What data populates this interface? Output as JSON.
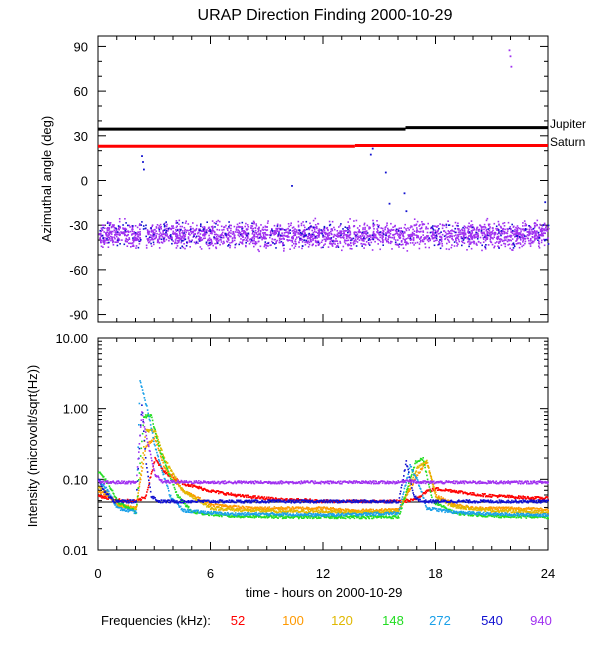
{
  "chart_data": {
    "title": "URAP Direction Finding  2000-10-29",
    "xlabel": "time - hours on 2000-10-29",
    "x_ticks": [
      "0",
      "6",
      "12",
      "18",
      "24"
    ],
    "x_tick_values": [
      0,
      6,
      12,
      18,
      24
    ],
    "xlim": [
      0,
      24
    ],
    "panels": [
      {
        "id": "azimuth",
        "type": "scatter",
        "ylabel": "Azimuthal angle (deg)",
        "ylim": [
          -95,
          97
        ],
        "y_ticks": [
          "90",
          "60",
          "30",
          "0",
          "-30",
          "-60",
          "-90"
        ],
        "y_tick_values": [
          90,
          60,
          30,
          0,
          -30,
          -60,
          -90
        ],
        "reference_lines": [
          {
            "name": "Jupiter",
            "color": "#000000",
            "segments": [
              [
                0,
                16.4,
                34.5
              ],
              [
                16.4,
                24,
                35.5
              ]
            ]
          },
          {
            "name": "Saturn",
            "color": "#ff0000",
            "segments": [
              [
                0,
                13.7,
                23.0
              ],
              [
                13.7,
                24,
                23.5
              ]
            ]
          }
        ],
        "series": [
          {
            "name": "940 kHz band",
            "color": "#a030f0",
            "center": -36,
            "spread": 5
          },
          {
            "name": "540 kHz band",
            "color": "#1010d0",
            "center": -36,
            "spread": 6
          }
        ],
        "outliers": [
          {
            "x": 2.3,
            "y": 17
          },
          {
            "x": 2.35,
            "y": 13
          },
          {
            "x": 2.4,
            "y": 8
          },
          {
            "x": 10.3,
            "y": -3
          },
          {
            "x": 14.5,
            "y": 18
          },
          {
            "x": 14.6,
            "y": 22
          },
          {
            "x": 15.3,
            "y": 6
          },
          {
            "x": 15.5,
            "y": -15
          },
          {
            "x": 16.3,
            "y": -8
          },
          {
            "x": 16.4,
            "y": -20
          },
          {
            "x": 21.9,
            "y": 88
          },
          {
            "x": 21.95,
            "y": 84
          },
          {
            "x": 22.0,
            "y": 77
          },
          {
            "x": 23.8,
            "y": -14
          }
        ]
      },
      {
        "id": "intensity",
        "type": "line",
        "ylabel": "Intensity (microvolt/sqrt(Hz))",
        "yscale": "log",
        "ylim": [
          0.01,
          10
        ],
        "y_ticks": [
          "10.00",
          "1.00",
          "0.10",
          "0.01"
        ],
        "y_tick_values": [
          10,
          1,
          0.1,
          0.01
        ],
        "series": [
          {
            "name": "52",
            "color": "#ff0000",
            "points": [
              [
                0,
                0.06
              ],
              [
                1,
                0.052
              ],
              [
                2.0,
                0.05
              ],
              [
                2.5,
                0.058
              ],
              [
                3.0,
                0.2
              ],
              [
                3.5,
                0.13
              ],
              [
                4.5,
                0.09
              ],
              [
                6,
                0.07
              ],
              [
                7.5,
                0.06
              ],
              [
                9,
                0.055
              ],
              [
                10,
                0.052
              ],
              [
                11,
                0.052
              ],
              [
                12,
                0.05
              ],
              [
                14,
                0.05
              ],
              [
                16,
                0.05
              ],
              [
                16.8,
                0.052
              ],
              [
                17.5,
                0.07
              ],
              [
                18,
                0.075
              ],
              [
                19,
                0.07
              ],
              [
                20,
                0.063
              ],
              [
                21,
                0.06
              ],
              [
                22,
                0.058
              ],
              [
                23,
                0.056
              ],
              [
                24,
                0.055
              ]
            ]
          },
          {
            "name": "100",
            "color": "#ff9900",
            "points": [
              [
                0,
                0.07
              ],
              [
                0.5,
                0.06
              ],
              [
                1.0,
                0.045
              ],
              [
                2.0,
                0.04
              ],
              [
                2.5,
                0.3
              ],
              [
                3.0,
                0.4
              ],
              [
                3.5,
                0.15
              ],
              [
                4.5,
                0.07
              ],
              [
                6,
                0.045
              ],
              [
                8,
                0.04
              ],
              [
                10,
                0.04
              ],
              [
                12,
                0.04
              ],
              [
                13,
                0.038
              ],
              [
                14,
                0.037
              ],
              [
                16,
                0.038
              ],
              [
                17,
                0.12
              ],
              [
                17.5,
                0.18
              ],
              [
                18,
                0.06
              ],
              [
                19,
                0.045
              ],
              [
                20,
                0.04
              ],
              [
                22,
                0.04
              ],
              [
                24,
                0.038
              ]
            ]
          },
          {
            "name": "120",
            "color": "#e0b800",
            "points": [
              [
                0,
                0.08
              ],
              [
                0.5,
                0.065
              ],
              [
                1.0,
                0.045
              ],
              [
                2.0,
                0.038
              ],
              [
                2.5,
                0.5
              ],
              [
                3.0,
                0.5
              ],
              [
                3.5,
                0.2
              ],
              [
                4.5,
                0.07
              ],
              [
                6,
                0.04
              ],
              [
                8,
                0.037
              ],
              [
                10,
                0.036
              ],
              [
                12,
                0.036
              ],
              [
                14,
                0.035
              ],
              [
                16,
                0.036
              ],
              [
                17,
                0.15
              ],
              [
                17.5,
                0.19
              ],
              [
                18,
                0.055
              ],
              [
                19,
                0.042
              ],
              [
                21,
                0.037
              ],
              [
                24,
                0.035
              ]
            ]
          },
          {
            "name": "148",
            "color": "#22dd22",
            "points": [
              [
                0,
                0.13
              ],
              [
                0.5,
                0.09
              ],
              [
                1.0,
                0.05
              ],
              [
                2.0,
                0.035
              ],
              [
                2.4,
                0.8
              ],
              [
                2.8,
                0.8
              ],
              [
                3.3,
                0.25
              ],
              [
                4.2,
                0.06
              ],
              [
                5,
                0.035
              ],
              [
                7,
                0.031
              ],
              [
                10,
                0.03
              ],
              [
                12,
                0.03
              ],
              [
                14,
                0.03
              ],
              [
                16,
                0.03
              ],
              [
                16.9,
                0.18
              ],
              [
                17.3,
                0.2
              ],
              [
                17.8,
                0.05
              ],
              [
                19,
                0.034
              ],
              [
                21,
                0.031
              ],
              [
                24,
                0.03
              ]
            ]
          },
          {
            "name": "272",
            "color": "#1aa0e8",
            "points": [
              [
                0,
                0.1
              ],
              [
                0.5,
                0.07
              ],
              [
                1.0,
                0.04
              ],
              [
                2.0,
                0.035
              ],
              [
                2.2,
                2.5
              ],
              [
                2.6,
                1.0
              ],
              [
                3.0,
                0.3
              ],
              [
                3.8,
                0.06
              ],
              [
                4.5,
                0.037
              ],
              [
                7,
                0.033
              ],
              [
                10,
                0.033
              ],
              [
                12,
                0.032
              ],
              [
                14,
                0.033
              ],
              [
                16,
                0.034
              ],
              [
                16.6,
                0.16
              ],
              [
                17.0,
                0.1
              ],
              [
                17.5,
                0.04
              ],
              [
                19,
                0.035
              ],
              [
                21,
                0.033
              ],
              [
                24,
                0.032
              ]
            ]
          },
          {
            "name": "540",
            "color": "#1010d0",
            "points": [
              [
                0,
                0.1
              ],
              [
                0.3,
                0.07
              ],
              [
                0.8,
                0.05
              ],
              [
                2.0,
                0.05
              ],
              [
                2.3,
                1.2
              ],
              [
                2.5,
                0.2
              ],
              [
                2.8,
                0.06
              ],
              [
                3.2,
                0.05
              ],
              [
                6,
                0.05
              ],
              [
                10,
                0.05
              ],
              [
                12,
                0.05
              ],
              [
                14,
                0.05
              ],
              [
                16,
                0.05
              ],
              [
                16.4,
                0.18
              ],
              [
                16.8,
                0.06
              ],
              [
                17.2,
                0.05
              ],
              [
                20,
                0.05
              ],
              [
                24,
                0.05
              ]
            ]
          },
          {
            "name": "940",
            "color": "#a030f0",
            "points": [
              [
                0,
                0.093
              ],
              [
                1,
                0.093
              ],
              [
                2,
                0.093
              ],
              [
                2.3,
                0.9
              ],
              [
                2.6,
                0.35
              ],
              [
                3.0,
                0.12
              ],
              [
                3.4,
                0.095
              ],
              [
                6,
                0.093
              ],
              [
                10,
                0.093
              ],
              [
                14,
                0.093
              ],
              [
                16,
                0.093
              ],
              [
                16.5,
                0.1
              ],
              [
                17,
                0.093
              ],
              [
                20,
                0.093
              ],
              [
                24,
                0.093
              ]
            ]
          }
        ]
      }
    ]
  },
  "labels": {
    "jupiter": "Jupiter",
    "saturn": "Saturn",
    "legend_prefix": "Frequencies (kHz):"
  },
  "legend": [
    {
      "label": "52",
      "color": "#ff0000"
    },
    {
      "label": "100",
      "color": "#ff9900"
    },
    {
      "label": "120",
      "color": "#e0b800"
    },
    {
      "label": "148",
      "color": "#22dd22"
    },
    {
      "label": "272",
      "color": "#1aa0e8"
    },
    {
      "label": "540",
      "color": "#1010d0"
    },
    {
      "label": "940",
      "color": "#a030f0"
    }
  ]
}
